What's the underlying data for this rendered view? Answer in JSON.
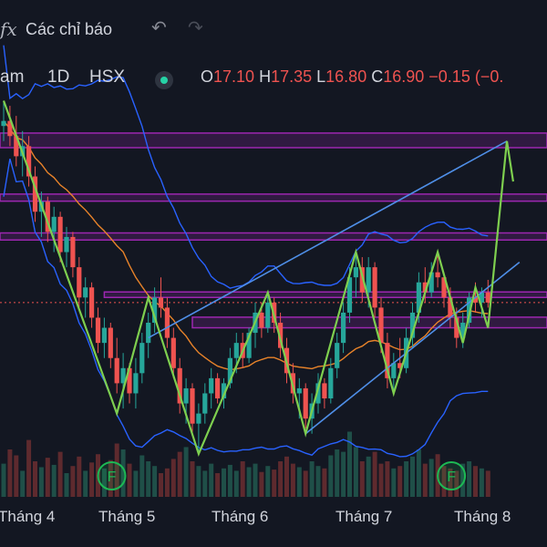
{
  "toolbar": {
    "indicators_icon": "ƒx",
    "indicators_label": "Các chỉ báo",
    "undo_icon": "↶",
    "redo_icon": "↷"
  },
  "legend": {
    "symbol": "am",
    "timeframe": "1D",
    "exchange": "HSX",
    "o_label": "O",
    "o_value": "17.10",
    "h_label": "H",
    "h_value": "17.35",
    "l_label": "L",
    "l_value": "16.80",
    "c_label": "C",
    "c_value": "16.90",
    "change": "−0.15 (−0."
  },
  "colors": {
    "background": "#131722",
    "up": "#26a69a",
    "down": "#ef5350",
    "bollinger": "#2962ff",
    "ma": "#e8832a",
    "zigzag": "#7ecf4f",
    "channel": "#4f8fe8",
    "zone": "#9c27b0",
    "marker": "#1db954"
  },
  "chart_data": {
    "type": "candlestick",
    "xlabel": "",
    "ylabel": "",
    "x_ticks": [
      "Tháng 4",
      "Tháng 5",
      "Tháng 6",
      "Tháng 7",
      "Tháng 8"
    ],
    "last_ohlc": {
      "open": 17.1,
      "high": 17.35,
      "low": 16.8,
      "close": 16.9,
      "change": -0.15
    },
    "price_range": [
      13.5,
      21.0
    ],
    "candles": [
      [
        20.4,
        20.9,
        20.1,
        20.5
      ],
      [
        20.5,
        20.8,
        20.0,
        20.2
      ],
      [
        20.2,
        20.6,
        19.6,
        19.8
      ],
      [
        19.8,
        20.3,
        19.4,
        20.0
      ],
      [
        20.0,
        20.2,
        19.2,
        19.4
      ],
      [
        19.4,
        19.6,
        18.5,
        18.7
      ],
      [
        18.7,
        19.1,
        18.2,
        18.9
      ],
      [
        18.9,
        19.0,
        18.1,
        18.3
      ],
      [
        18.3,
        18.8,
        17.9,
        18.6
      ],
      [
        18.6,
        18.7,
        17.7,
        17.9
      ],
      [
        17.9,
        18.4,
        17.6,
        18.2
      ],
      [
        18.2,
        18.3,
        17.4,
        17.6
      ],
      [
        17.6,
        17.8,
        16.8,
        17.0
      ],
      [
        17.0,
        17.4,
        16.6,
        17.2
      ],
      [
        17.2,
        17.3,
        16.4,
        16.6
      ],
      [
        16.6,
        16.8,
        15.9,
        16.1
      ],
      [
        16.1,
        16.6,
        15.8,
        16.4
      ],
      [
        16.4,
        16.5,
        15.6,
        15.8
      ],
      [
        15.8,
        16.2,
        15.1,
        15.3
      ],
      [
        15.3,
        15.9,
        14.8,
        15.6
      ],
      [
        15.6,
        15.7,
        14.9,
        15.1
      ],
      [
        15.1,
        15.8,
        14.8,
        15.5
      ],
      [
        15.5,
        16.3,
        15.3,
        16.1
      ],
      [
        16.1,
        16.7,
        15.8,
        16.5
      ],
      [
        16.5,
        17.2,
        16.3,
        17.0
      ],
      [
        17.0,
        17.4,
        16.6,
        16.8
      ],
      [
        16.8,
        17.0,
        16.0,
        16.2
      ],
      [
        16.2,
        16.4,
        15.4,
        15.6
      ],
      [
        15.6,
        15.8,
        14.7,
        14.9
      ],
      [
        14.9,
        15.4,
        14.5,
        15.2
      ],
      [
        15.2,
        15.3,
        14.3,
        14.5
      ],
      [
        14.5,
        14.9,
        13.9,
        14.7
      ],
      [
        14.7,
        15.3,
        14.5,
        15.1
      ],
      [
        15.1,
        15.6,
        14.8,
        15.4
      ],
      [
        15.4,
        15.5,
        14.9,
        15.0
      ],
      [
        15.0,
        15.4,
        14.8,
        15.3
      ],
      [
        15.3,
        16.0,
        15.2,
        15.8
      ],
      [
        15.8,
        16.3,
        15.5,
        16.1
      ],
      [
        16.1,
        16.3,
        15.6,
        15.8
      ],
      [
        15.8,
        16.4,
        15.7,
        16.3
      ],
      [
        16.3,
        16.9,
        16.0,
        16.7
      ],
      [
        16.7,
        16.9,
        16.2,
        16.4
      ],
      [
        16.4,
        17.1,
        16.3,
        16.9
      ],
      [
        16.9,
        17.0,
        16.3,
        16.5
      ],
      [
        16.5,
        16.7,
        15.8,
        16.0
      ],
      [
        16.0,
        16.2,
        15.3,
        15.5
      ],
      [
        15.5,
        15.7,
        14.9,
        15.1
      ],
      [
        15.1,
        15.4,
        14.6,
        15.2
      ],
      [
        15.2,
        15.3,
        14.4,
        14.6
      ],
      [
        14.6,
        15.1,
        14.3,
        14.9
      ],
      [
        14.9,
        15.5,
        14.7,
        15.3
      ],
      [
        15.3,
        15.4,
        14.8,
        15.0
      ],
      [
        15.0,
        15.8,
        14.9,
        15.6
      ],
      [
        15.6,
        16.3,
        15.4,
        16.1
      ],
      [
        16.1,
        16.9,
        15.9,
        16.7
      ],
      [
        16.7,
        17.6,
        16.5,
        17.4
      ],
      [
        17.4,
        17.9,
        17.0,
        17.6
      ],
      [
        17.6,
        17.8,
        16.9,
        17.1
      ],
      [
        17.1,
        17.8,
        16.8,
        17.6
      ],
      [
        17.6,
        17.7,
        16.6,
        16.8
      ],
      [
        16.8,
        17.0,
        15.9,
        16.1
      ],
      [
        16.1,
        16.3,
        15.2,
        15.4
      ],
      [
        15.4,
        15.9,
        15.1,
        15.7
      ],
      [
        15.7,
        16.2,
        15.4,
        15.6
      ],
      [
        15.6,
        16.4,
        15.5,
        16.2
      ],
      [
        16.2,
        16.9,
        16.0,
        16.7
      ],
      [
        16.7,
        17.5,
        16.5,
        17.3
      ],
      [
        17.3,
        17.6,
        16.9,
        17.1
      ],
      [
        17.1,
        17.7,
        17.0,
        17.5
      ],
      [
        17.5,
        17.9,
        17.2,
        17.4
      ],
      [
        17.4,
        17.5,
        16.8,
        17.0
      ],
      [
        17.0,
        17.2,
        16.4,
        16.6
      ],
      [
        16.6,
        16.8,
        16.0,
        16.2
      ],
      [
        16.2,
        16.7,
        16.0,
        16.5
      ],
      [
        16.5,
        17.1,
        16.4,
        17.0
      ],
      [
        17.0,
        17.3,
        16.7,
        16.9
      ],
      [
        16.9,
        17.2,
        16.6,
        17.1
      ],
      [
        17.1,
        17.35,
        16.8,
        16.9
      ]
    ],
    "volume": [
      28,
      40,
      35,
      22,
      48,
      30,
      25,
      33,
      27,
      38,
      20,
      26,
      34,
      22,
      29,
      36,
      24,
      31,
      45,
      40,
      28,
      22,
      35,
      30,
      26,
      20,
      24,
      32,
      38,
      42,
      30,
      26,
      22,
      28,
      20,
      24,
      27,
      22,
      30,
      25,
      28,
      21,
      26,
      23,
      30,
      34,
      28,
      25,
      22,
      30,
      26,
      24,
      35,
      40,
      38,
      55,
      42,
      30,
      34,
      38,
      28,
      30,
      24,
      26,
      30,
      34,
      40,
      28,
      32,
      36,
      26,
      24,
      22,
      28,
      30,
      26,
      24,
      22
    ],
    "zigzag_points": [
      [
        0,
        20.9
      ],
      [
        18,
        14.7
      ],
      [
        23,
        17.0
      ],
      [
        31,
        13.9
      ],
      [
        42,
        17.1
      ],
      [
        48,
        14.3
      ],
      [
        56,
        17.9
      ],
      [
        62,
        15.1
      ],
      [
        69,
        17.9
      ],
      [
        73,
        16.1
      ],
      [
        75,
        17.2
      ],
      [
        77,
        16.4
      ],
      [
        80,
        20.1
      ],
      [
        81,
        19.3
      ]
    ],
    "channel": {
      "upper": [
        [
          23,
          16.2
        ],
        [
          80,
          20.1
        ]
      ],
      "lower": [
        [
          48,
          14.3
        ],
        [
          82,
          17.7
        ]
      ]
    },
    "zones": [
      [
        19.97,
        20.26
      ],
      [
        18.91,
        19.05
      ],
      [
        18.14,
        18.28
      ],
      [
        17.01,
        17.11
      ],
      [
        16.4,
        16.61
      ]
    ],
    "markers": [
      {
        "label": "F",
        "at": 15
      },
      {
        "label": "F",
        "at": 69
      }
    ]
  }
}
